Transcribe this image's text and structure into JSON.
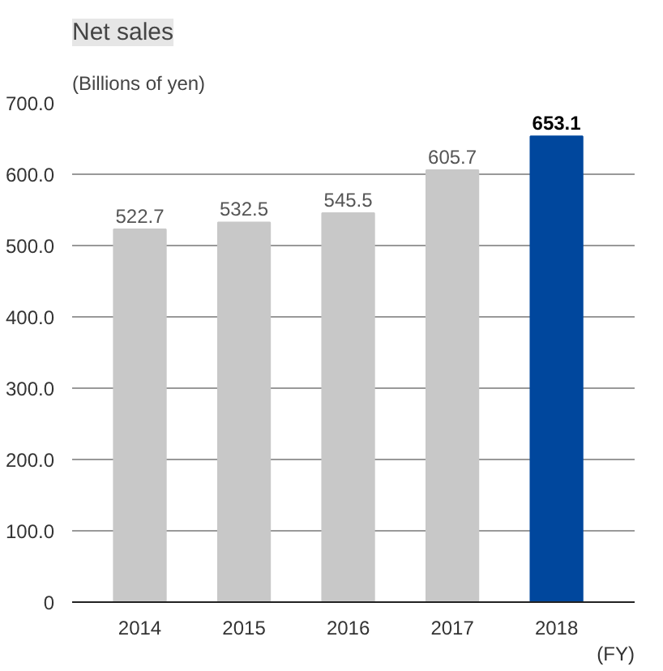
{
  "chart_data": {
    "type": "bar",
    "title": "Net sales",
    "ylabel": "(Billions of yen)",
    "xlabel": "(FY)",
    "categories": [
      "2014",
      "2015",
      "2016",
      "2017",
      "2018"
    ],
    "values": [
      522.7,
      532.5,
      545.5,
      605.7,
      653.1
    ],
    "colors": [
      "#c8c8c8",
      "#c8c8c8",
      "#c8c8c8",
      "#c8c8c8",
      "#00479d"
    ],
    "data_labels": true,
    "ylim": [
      0,
      700
    ],
    "yticks": [
      {
        "value": 0,
        "label": "0"
      },
      {
        "value": 100,
        "label": "100.0"
      },
      {
        "value": 200,
        "label": "200.0"
      },
      {
        "value": 300,
        "label": "300.0"
      },
      {
        "value": 400,
        "label": "400.0"
      },
      {
        "value": 500,
        "label": "500.0"
      },
      {
        "value": 600,
        "label": "600.0"
      },
      {
        "value": 700,
        "label": "700.0"
      }
    ],
    "grid": "y"
  }
}
